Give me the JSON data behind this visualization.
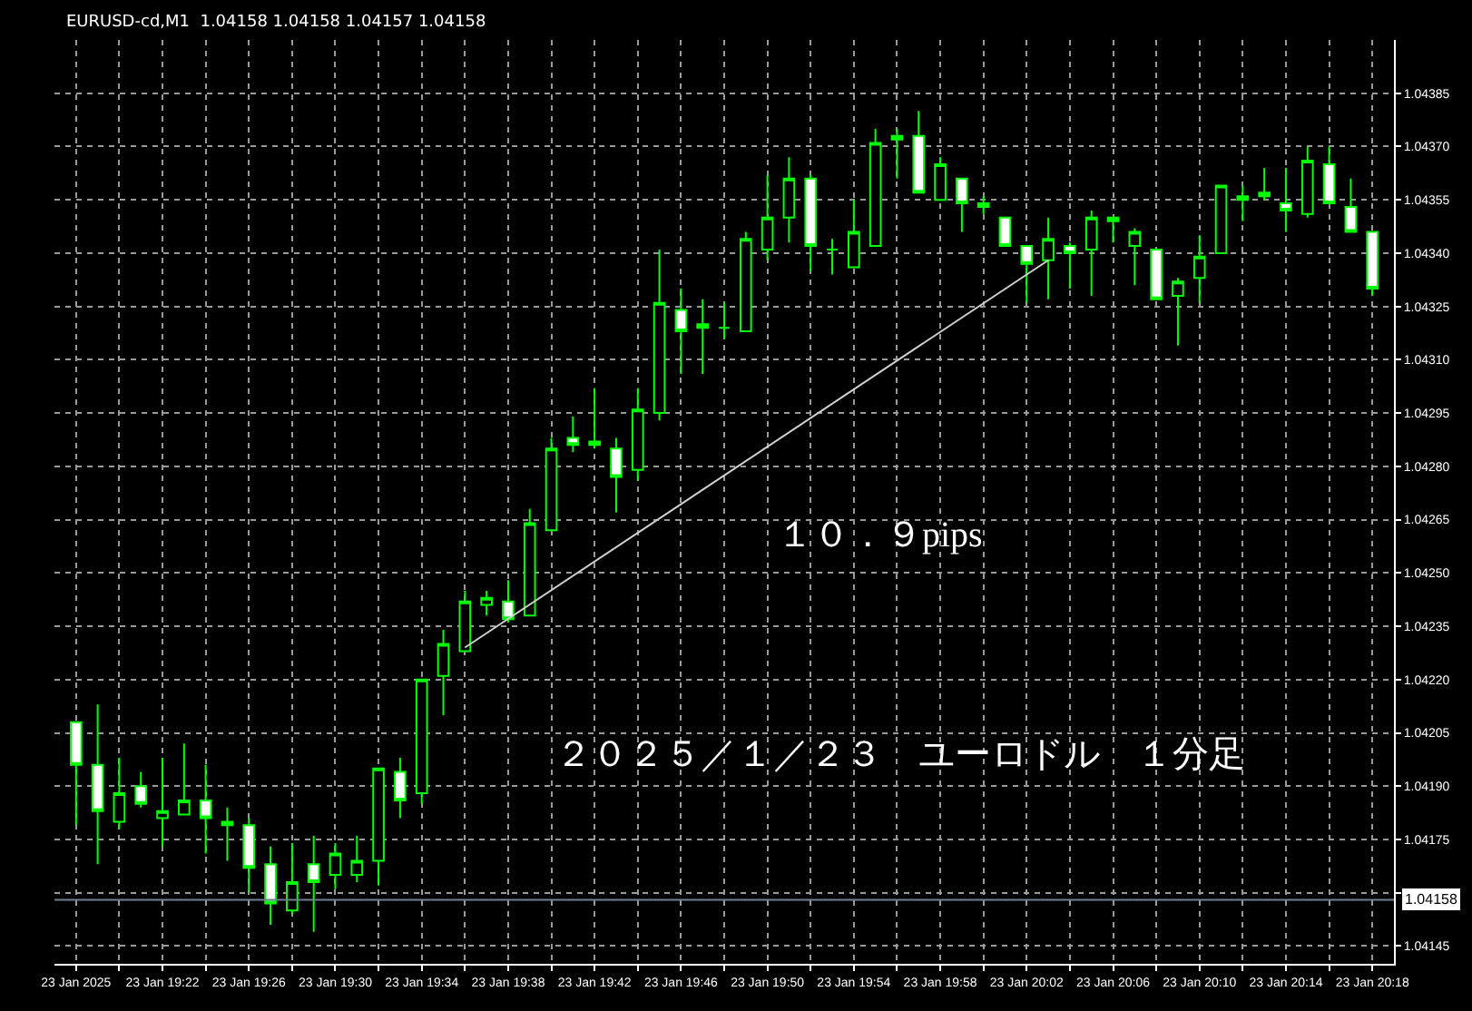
{
  "chart_data": {
    "type": "candlestick",
    "title": "EURUSD-cd,M1  1.04158 1.04158 1.04157 1.04158",
    "x": [
      "2025-01-23T19:18",
      "2025-01-23T19:19",
      "2025-01-23T19:20",
      "2025-01-23T19:21",
      "2025-01-23T19:22",
      "2025-01-23T19:23",
      "2025-01-23T19:24",
      "2025-01-23T19:25",
      "2025-01-23T19:26",
      "2025-01-23T19:27",
      "2025-01-23T19:28",
      "2025-01-23T19:29",
      "2025-01-23T19:30",
      "2025-01-23T19:31",
      "2025-01-23T19:32",
      "2025-01-23T19:33",
      "2025-01-23T19:34",
      "2025-01-23T19:35",
      "2025-01-23T19:36",
      "2025-01-23T19:37",
      "2025-01-23T19:38",
      "2025-01-23T19:39",
      "2025-01-23T19:40",
      "2025-01-23T19:41",
      "2025-01-23T19:42",
      "2025-01-23T19:43",
      "2025-01-23T19:44",
      "2025-01-23T19:45",
      "2025-01-23T19:46",
      "2025-01-23T19:47",
      "2025-01-23T19:48",
      "2025-01-23T19:49",
      "2025-01-23T19:50",
      "2025-01-23T19:51",
      "2025-01-23T19:52",
      "2025-01-23T19:53",
      "2025-01-23T19:54",
      "2025-01-23T19:55",
      "2025-01-23T19:56",
      "2025-01-23T19:57",
      "2025-01-23T19:58",
      "2025-01-23T19:59",
      "2025-01-23T20:00",
      "2025-01-23T20:01",
      "2025-01-23T20:02",
      "2025-01-23T20:03",
      "2025-01-23T20:04",
      "2025-01-23T20:05",
      "2025-01-23T20:06",
      "2025-01-23T20:07",
      "2025-01-23T20:08",
      "2025-01-23T20:09",
      "2025-01-23T20:10",
      "2025-01-23T20:11",
      "2025-01-23T20:12",
      "2025-01-23T20:13",
      "2025-01-23T20:14",
      "2025-01-23T20:15",
      "2025-01-23T20:16",
      "2025-01-23T20:17",
      "2025-01-23T20:18"
    ],
    "ohlc": [
      [
        1.04208,
        1.04208,
        1.04179,
        1.04196
      ],
      [
        1.04196,
        1.04213,
        1.04168,
        1.04183
      ],
      [
        1.0418,
        1.04198,
        1.04178,
        1.04188
      ],
      [
        1.0419,
        1.04194,
        1.04184,
        1.04185
      ],
      [
        1.04181,
        1.04198,
        1.04173,
        1.04183
      ],
      [
        1.04182,
        1.04202,
        1.04182,
        1.04186
      ],
      [
        1.04186,
        1.04196,
        1.04171,
        1.04181
      ],
      [
        1.04179,
        1.04184,
        1.04169,
        1.0418
      ],
      [
        1.04179,
        1.04181,
        1.0416,
        1.04167
      ],
      [
        1.04168,
        1.04173,
        1.04151,
        1.04157
      ],
      [
        1.04155,
        1.04174,
        1.04154,
        1.04163
      ],
      [
        1.04168,
        1.04176,
        1.04149,
        1.04163
      ],
      [
        1.04165,
        1.04174,
        1.04161,
        1.04171
      ],
      [
        1.04165,
        1.04176,
        1.04163,
        1.04169
      ],
      [
        1.04169,
        1.04195,
        1.04162,
        1.04195
      ],
      [
        1.04194,
        1.04198,
        1.04181,
        1.04186
      ],
      [
        1.04188,
        1.0422,
        1.04185,
        1.0422
      ],
      [
        1.04221,
        1.04234,
        1.0421,
        1.0423
      ],
      [
        1.04228,
        1.04245,
        1.04228,
        1.04242
      ],
      [
        1.04241,
        1.04245,
        1.04238,
        1.04243
      ],
      [
        1.04242,
        1.04248,
        1.04236,
        1.04237
      ],
      [
        1.04238,
        1.04268,
        1.04238,
        1.04264
      ],
      [
        1.04262,
        1.04288,
        1.04262,
        1.04285
      ],
      [
        1.04288,
        1.04294,
        1.04284,
        1.04286
      ],
      [
        1.04287,
        1.04302,
        1.04285,
        1.04286
      ],
      [
        1.04285,
        1.04288,
        1.04267,
        1.04277
      ],
      [
        1.04279,
        1.04302,
        1.04276,
        1.04296
      ],
      [
        1.04295,
        1.04341,
        1.04293,
        1.04326
      ],
      [
        1.04324,
        1.0433,
        1.04306,
        1.04318
      ],
      [
        1.04319,
        1.04327,
        1.04306,
        1.0432
      ],
      [
        1.04319,
        1.04326,
        1.04316,
        1.04319
      ],
      [
        1.04318,
        1.04346,
        1.04318,
        1.04344
      ],
      [
        1.04341,
        1.04362,
        1.04338,
        1.0435
      ],
      [
        1.0435,
        1.04367,
        1.04343,
        1.04361
      ],
      [
        1.04361,
        1.04362,
        1.04335,
        1.04342
      ],
      [
        1.04341,
        1.04344,
        1.04334,
        1.04341
      ],
      [
        1.04336,
        1.04355,
        1.04336,
        1.04346
      ],
      [
        1.04342,
        1.04375,
        1.04342,
        1.04371
      ],
      [
        1.04373,
        1.04375,
        1.04361,
        1.04372
      ],
      [
        1.04373,
        1.0438,
        1.04357,
        1.04357
      ],
      [
        1.04355,
        1.04367,
        1.04355,
        1.04365
      ],
      [
        1.04361,
        1.04361,
        1.04346,
        1.04354
      ],
      [
        1.04354,
        1.04356,
        1.04351,
        1.04353
      ],
      [
        1.0435,
        1.0435,
        1.04342,
        1.04342
      ],
      [
        1.04342,
        1.04342,
        1.04326,
        1.04337
      ],
      [
        1.04338,
        1.0435,
        1.04327,
        1.04344
      ],
      [
        1.04342,
        1.04343,
        1.0433,
        1.0434
      ],
      [
        1.04341,
        1.04352,
        1.04328,
        1.0435
      ],
      [
        1.0435,
        1.0435,
        1.04343,
        1.04349
      ],
      [
        1.04342,
        1.04347,
        1.04331,
        1.04346
      ],
      [
        1.04341,
        1.04341,
        1.04327,
        1.04327
      ],
      [
        1.04328,
        1.04333,
        1.04314,
        1.04332
      ],
      [
        1.04333,
        1.04345,
        1.04326,
        1.04339
      ],
      [
        1.0434,
        1.04359,
        1.0434,
        1.04359
      ],
      [
        1.04356,
        1.04359,
        1.04349,
        1.04355
      ],
      [
        1.04357,
        1.04364,
        1.04355,
        1.04356
      ],
      [
        1.04354,
        1.04364,
        1.04346,
        1.04352
      ],
      [
        1.04351,
        1.0437,
        1.0435,
        1.04366
      ],
      [
        1.04365,
        1.0437,
        1.04354,
        1.04354
      ],
      [
        1.04353,
        1.04361,
        1.04346,
        1.04346
      ],
      [
        1.04346,
        1.04346,
        1.04328,
        1.0433
      ]
    ],
    "color": "#00ff00",
    "series": [
      {
        "type": "line",
        "x": [
          "2025-01-23T19:36",
          "2025-01-23T20:03"
        ],
        "values": [
          1.04229,
          1.04338
        ],
        "color": "#d0d0d0"
      }
    ],
    "xlim": [
      "2025-01-23T19:17",
      "2025-01-23T20:19"
    ],
    "xticks": [
      {
        "value": "2025-01-23T19:18",
        "label": "23 Jan 2025"
      },
      {
        "value": "2025-01-23T19:20",
        "label": null
      },
      {
        "value": "2025-01-23T19:22",
        "label": "23 Jan 19:22"
      },
      {
        "value": "2025-01-23T19:24",
        "label": null
      },
      {
        "value": "2025-01-23T19:26",
        "label": "23 Jan 19:26"
      },
      {
        "value": "2025-01-23T19:28",
        "label": null
      },
      {
        "value": "2025-01-23T19:30",
        "label": "23 Jan 19:30"
      },
      {
        "value": "2025-01-23T19:32",
        "label": null
      },
      {
        "value": "2025-01-23T19:34",
        "label": "23 Jan 19:34"
      },
      {
        "value": "2025-01-23T19:36",
        "label": null
      },
      {
        "value": "2025-01-23T19:38",
        "label": "23 Jan 19:38"
      },
      {
        "value": "2025-01-23T19:40",
        "label": null
      },
      {
        "value": "2025-01-23T19:42",
        "label": "23 Jan 19:42"
      },
      {
        "value": "2025-01-23T19:44",
        "label": null
      },
      {
        "value": "2025-01-23T19:46",
        "label": "23 Jan 19:46"
      },
      {
        "value": "2025-01-23T19:48",
        "label": null
      },
      {
        "value": "2025-01-23T19:50",
        "label": "23 Jan 19:50"
      },
      {
        "value": "2025-01-23T19:52",
        "label": null
      },
      {
        "value": "2025-01-23T19:54",
        "label": "23 Jan 19:54"
      },
      {
        "value": "2025-01-23T19:56",
        "label": null
      },
      {
        "value": "2025-01-23T19:58",
        "label": "23 Jan 19:58"
      },
      {
        "value": "2025-01-23T20:00",
        "label": null
      },
      {
        "value": "2025-01-23T20:02",
        "label": "23 Jan 20:02"
      },
      {
        "value": "2025-01-23T20:04",
        "label": null
      },
      {
        "value": "2025-01-23T20:06",
        "label": "23 Jan 20:06"
      },
      {
        "value": "2025-01-23T20:08",
        "label": null
      },
      {
        "value": "2025-01-23T20:10",
        "label": "23 Jan 20:10"
      },
      {
        "value": "2025-01-23T20:12",
        "label": null
      },
      {
        "value": "2025-01-23T20:14",
        "label": "23 Jan 20:14"
      },
      {
        "value": "2025-01-23T20:16",
        "label": null
      },
      {
        "value": "2025-01-23T20:18",
        "label": "23 Jan 20:18"
      }
    ],
    "ylim": [
      1.0414,
      1.044
    ],
    "yticks": [
      {
        "value": 1.04145,
        "label": "1.04145"
      },
      {
        "value": 1.0416,
        "label": null
      },
      {
        "value": 1.04175,
        "label": "1.04175"
      },
      {
        "value": 1.0419,
        "label": "1.04190"
      },
      {
        "value": 1.04205,
        "label": "1.04205"
      },
      {
        "value": 1.0422,
        "label": "1.04220"
      },
      {
        "value": 1.04235,
        "label": "1.04235"
      },
      {
        "value": 1.0425,
        "label": "1.04250"
      },
      {
        "value": 1.04265,
        "label": "1.04265"
      },
      {
        "value": 1.0428,
        "label": "1.04280"
      },
      {
        "value": 1.04295,
        "label": "1.04295"
      },
      {
        "value": 1.0431,
        "label": "1.04310"
      },
      {
        "value": 1.04325,
        "label": "1.04325"
      },
      {
        "value": 1.0434,
        "label": "1.04340"
      },
      {
        "value": 1.04355,
        "label": "1.04355"
      },
      {
        "value": 1.0437,
        "label": "1.04370"
      },
      {
        "value": 1.04385,
        "label": "1.04385"
      }
    ],
    "grid": true,
    "ref_lines": [
      {
        "axis": "y",
        "value": 1.04158,
        "label": "1.04158",
        "color": "#708090"
      }
    ],
    "annotations": [
      "１０．９pips",
      "２０２５／１／２３　ユーロドル　１分足"
    ]
  }
}
